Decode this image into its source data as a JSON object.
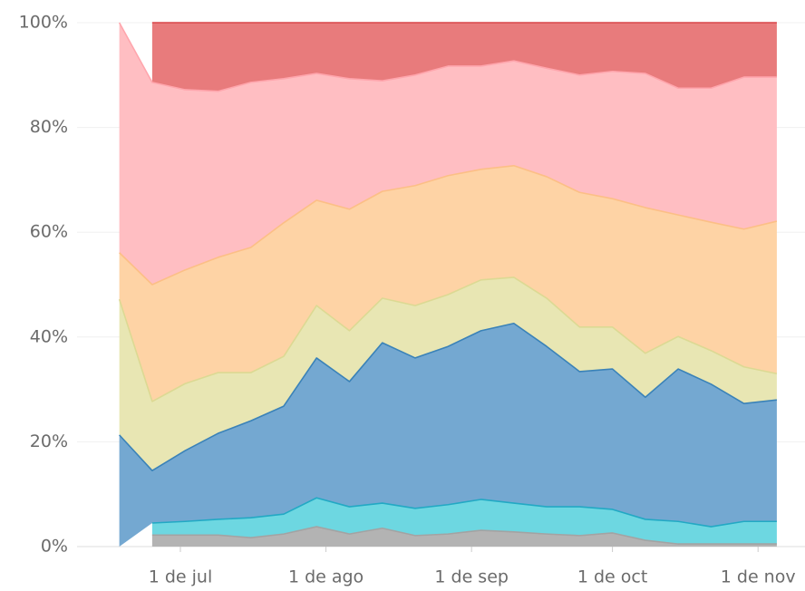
{
  "chart_data": {
    "type": "area",
    "stacked": true,
    "x": [
      "06-18",
      "06-25",
      "07-02",
      "07-09",
      "07-16",
      "07-23",
      "07-30",
      "08-06",
      "08-13",
      "08-20",
      "08-27",
      "09-03",
      "09-10",
      "09-17",
      "09-24",
      "10-01",
      "10-08",
      "10-15",
      "10-22",
      "10-29",
      "11-05"
    ],
    "xlim": [
      "06-09",
      "11-11"
    ],
    "xticks": [
      {
        "value": "07-01",
        "label": "1 de jul"
      },
      {
        "value": "08-01",
        "label": "1 de ago"
      },
      {
        "value": "09-01",
        "label": "1 de sep"
      },
      {
        "value": "10-01",
        "label": "1 de oct"
      },
      {
        "value": "11-01",
        "label": "1 de nov"
      }
    ],
    "ylim": [
      0,
      100
    ],
    "yticks": [
      {
        "value": 0,
        "label": "0%"
      },
      {
        "value": 20,
        "label": "20%"
      },
      {
        "value": 40,
        "label": "40%"
      },
      {
        "value": 60,
        "label": "60%"
      },
      {
        "value": 80,
        "label": "80%"
      },
      {
        "value": 100,
        "label": "100%"
      }
    ],
    "grid": true,
    "series": [
      {
        "color": "#b3b3b3",
        "line_color": "#a3a3a3",
        "values": [
          null,
          2.2,
          2.2,
          2.2,
          1.7,
          2.4,
          3.8,
          2.4,
          3.5,
          2.1,
          2.4,
          3.1,
          2.8,
          2.4,
          2.1,
          2.6,
          1.2,
          0.5,
          0.5,
          0.5,
          0.5
        ]
      },
      {
        "color": "#6dd7e1",
        "line_color": "#22a9c4",
        "values": [
          null,
          2.3,
          2.6,
          3.0,
          3.8,
          3.8,
          5.5,
          5.2,
          4.8,
          5.2,
          5.6,
          5.9,
          5.5,
          5.2,
          5.5,
          4.5,
          4.0,
          4.3,
          3.3,
          4.3,
          4.3
        ]
      },
      {
        "color": "#74a8d1",
        "line_color": "#3a82b8",
        "values": [
          21.3,
          10.0,
          13.5,
          16.4,
          18.5,
          20.6,
          26.7,
          23.9,
          30.6,
          28.7,
          30.2,
          32.2,
          34.3,
          30.6,
          25.8,
          26.8,
          23.3,
          29.1,
          27.2,
          22.5,
          23.2
        ]
      },
      {
        "color": "#e8e6b3",
        "line_color": "#dcd993",
        "values": [
          25.9,
          13.2,
          12.8,
          11.6,
          9.2,
          9.5,
          10.0,
          9.7,
          8.5,
          10.0,
          9.9,
          9.7,
          8.8,
          9.2,
          8.5,
          8.0,
          8.4,
          6.2,
          6.4,
          7.0,
          5.0
        ]
      },
      {
        "color": "#fed3a5",
        "line_color": "#fcbf86",
        "values": [
          8.9,
          22.3,
          21.7,
          22.0,
          23.9,
          25.5,
          20.1,
          23.2,
          20.4,
          22.9,
          22.7,
          21.1,
          21.3,
          23.2,
          25.7,
          24.5,
          27.8,
          23.2,
          24.5,
          26.3,
          29.1
        ]
      },
      {
        "color": "#ffbec2",
        "line_color": "#ffa6ad",
        "values": [
          43.9,
          38.6,
          34.4,
          31.7,
          31.5,
          27.5,
          24.2,
          24.9,
          21.1,
          21.1,
          20.9,
          19.7,
          20.0,
          20.7,
          22.4,
          24.3,
          25.6,
          24.2,
          25.6,
          29.0,
          27.5
        ]
      },
      {
        "color": "#e87b7c",
        "line_color": "#d9464a",
        "values": [
          null,
          11.4,
          12.8,
          13.1,
          11.4,
          10.7,
          9.7,
          10.7,
          11.1,
          10.0,
          8.3,
          8.3,
          7.3,
          8.7,
          10.0,
          9.3,
          9.7,
          12.5,
          12.5,
          10.4,
          10.4
        ]
      }
    ]
  }
}
